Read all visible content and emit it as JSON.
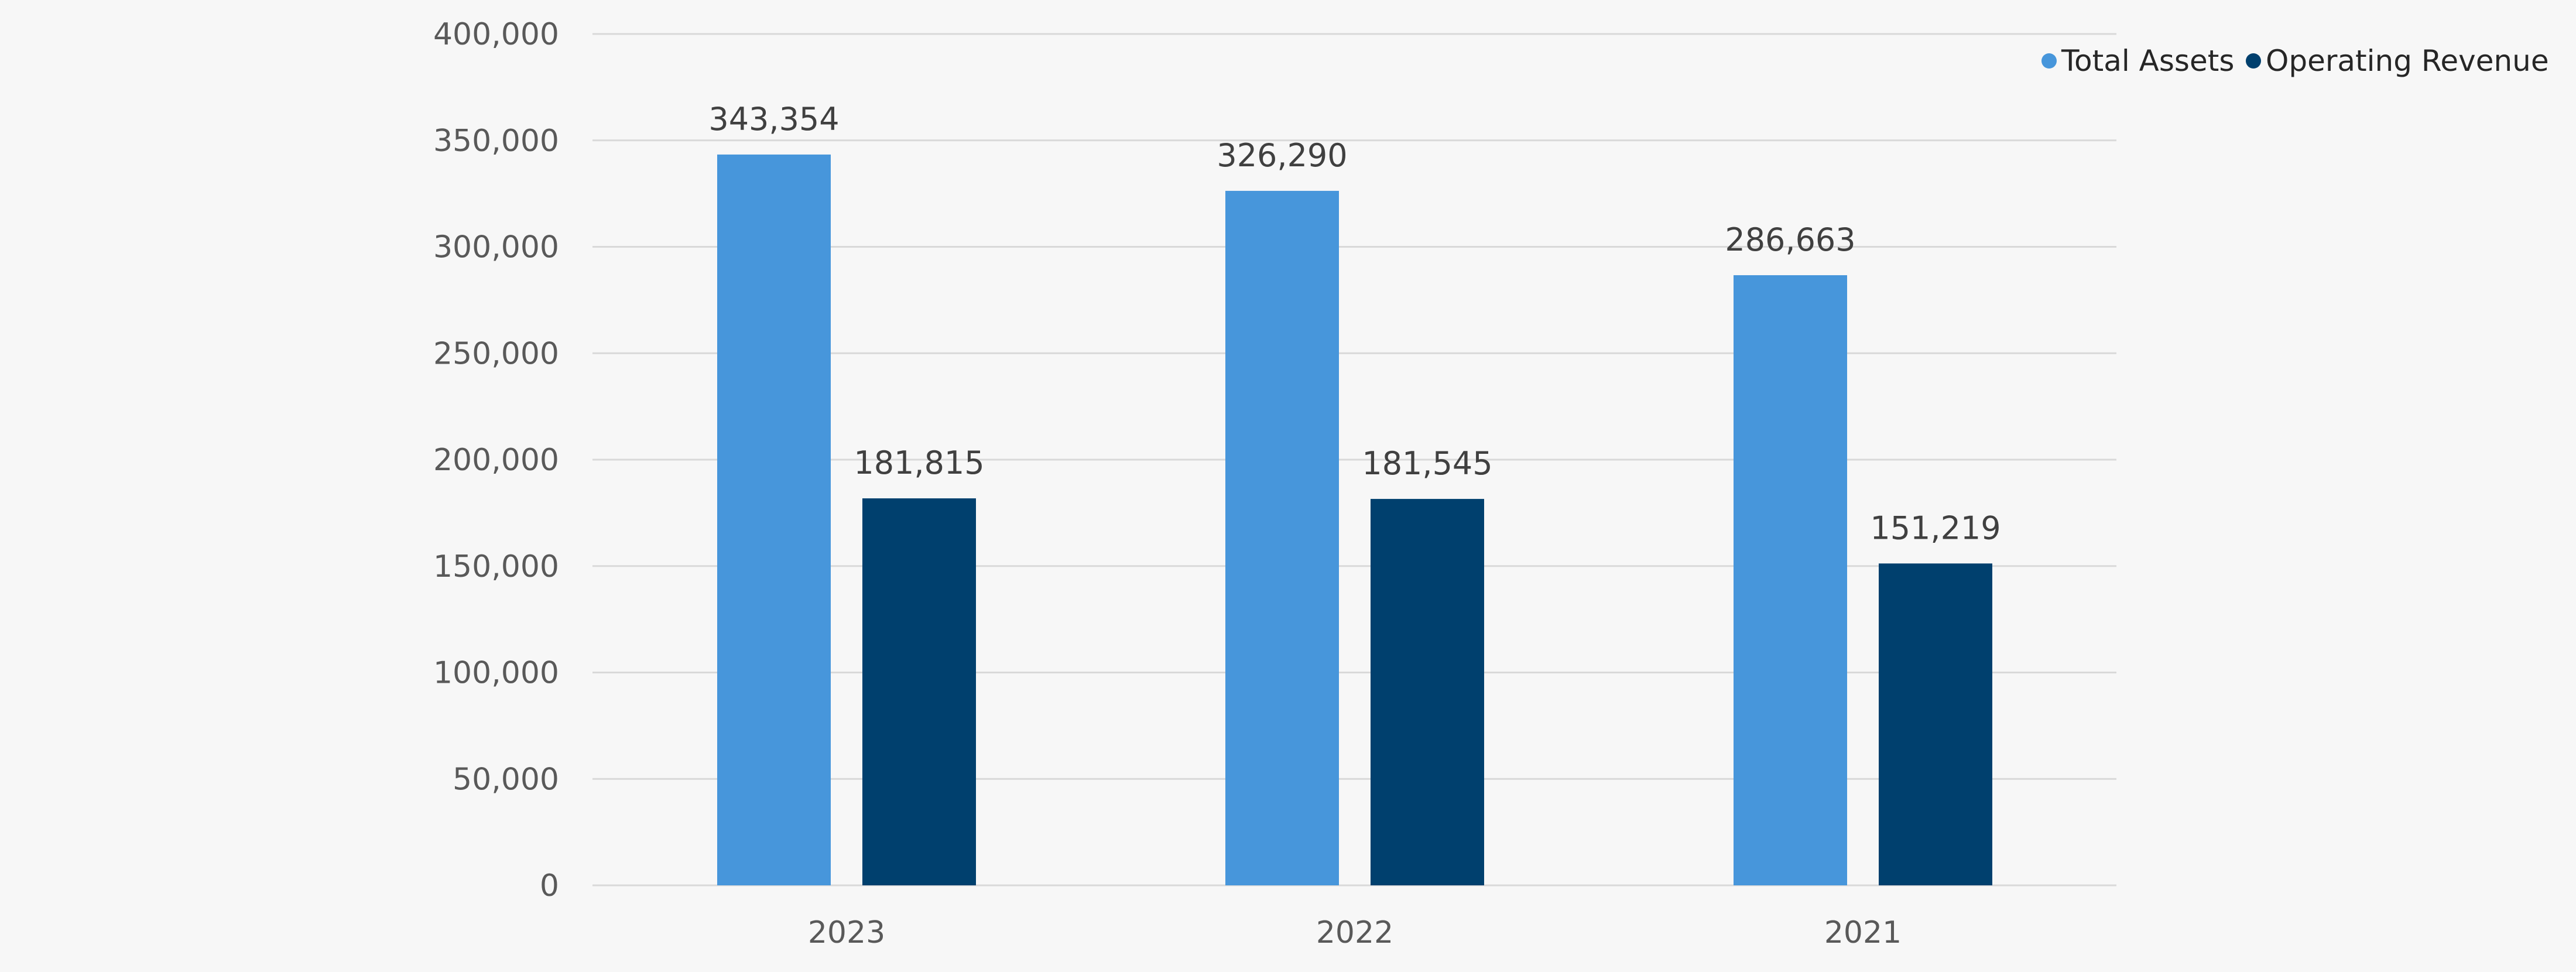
{
  "chart_data": {
    "type": "bar",
    "title": "",
    "xlabel": "",
    "ylabel": "",
    "categories": [
      "2023",
      "2022",
      "2021"
    ],
    "series": [
      {
        "name": "Total Assets",
        "color": "#4796db",
        "values": [
          343354,
          326290,
          286663
        ],
        "labels": [
          "343,354",
          "326,290",
          "286,663"
        ]
      },
      {
        "name": "Operating Revenue",
        "color": "#00406e",
        "values": [
          181815,
          181545,
          151219
        ],
        "labels": [
          "181,815",
          "181,545",
          "151,219"
        ]
      }
    ],
    "ylim": [
      0,
      400000
    ],
    "yticks": [
      0,
      50000,
      100000,
      150000,
      200000,
      250000,
      300000,
      350000,
      400000
    ],
    "ytick_labels": [
      "0",
      "50,000",
      "100,000",
      "150,000",
      "200,000",
      "250,000",
      "300,000",
      "350,000",
      "400,000"
    ],
    "grid": true,
    "legend_position": "top-right",
    "gridline_color": "#d9d9d9",
    "background": "#f7f7f7"
  }
}
